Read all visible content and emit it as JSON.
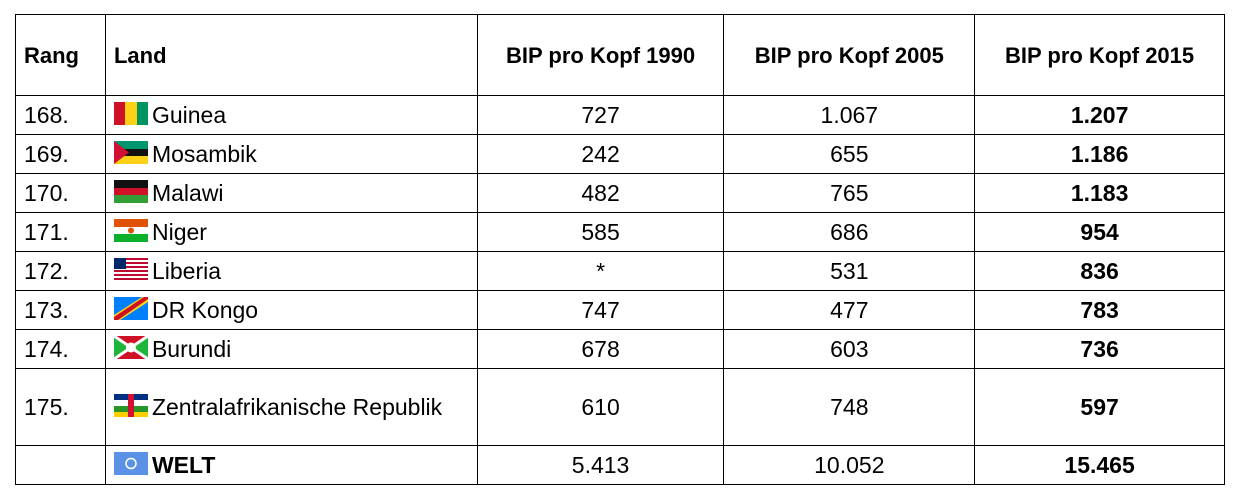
{
  "table": {
    "header": [
      "Rang",
      "Land",
      "BIP pro Kopf 1990",
      "BIP pro Kopf 2005",
      "BIP pro Kopf 2015"
    ],
    "rows": [
      {
        "rank": "168.",
        "land": "Guinea",
        "v1990": "727",
        "v2005": "1.067",
        "v2015": "1.207"
      },
      {
        "rank": "169.",
        "land": "Mosambik",
        "v1990": "242",
        "v2005": "655",
        "v2015": "1.186"
      },
      {
        "rank": "170.",
        "land": "Malawi",
        "v1990": "482",
        "v2005": "765",
        "v2015": "1.183"
      },
      {
        "rank": "171.",
        "land": "Niger",
        "v1990": "585",
        "v2005": "686",
        "v2015": "954"
      },
      {
        "rank": "172.",
        "land": "Liberia",
        "v1990": "*",
        "v2005": "531",
        "v2015": "836"
      },
      {
        "rank": "173.",
        "land": "DR Kongo",
        "v1990": "747",
        "v2005": "477",
        "v2015": "783"
      },
      {
        "rank": "174.",
        "land": "Burundi",
        "v1990": "678",
        "v2005": "603",
        "v2015": "736"
      },
      {
        "rank": "175.",
        "land": "Zentralafrikanische Republik",
        "v1990": "610",
        "v2005": "748",
        "v2015": "597"
      },
      {
        "land": "WELT",
        "v1990": "5.413",
        "v2005": "10.052",
        "v2015": "15.465"
      }
    ]
  }
}
